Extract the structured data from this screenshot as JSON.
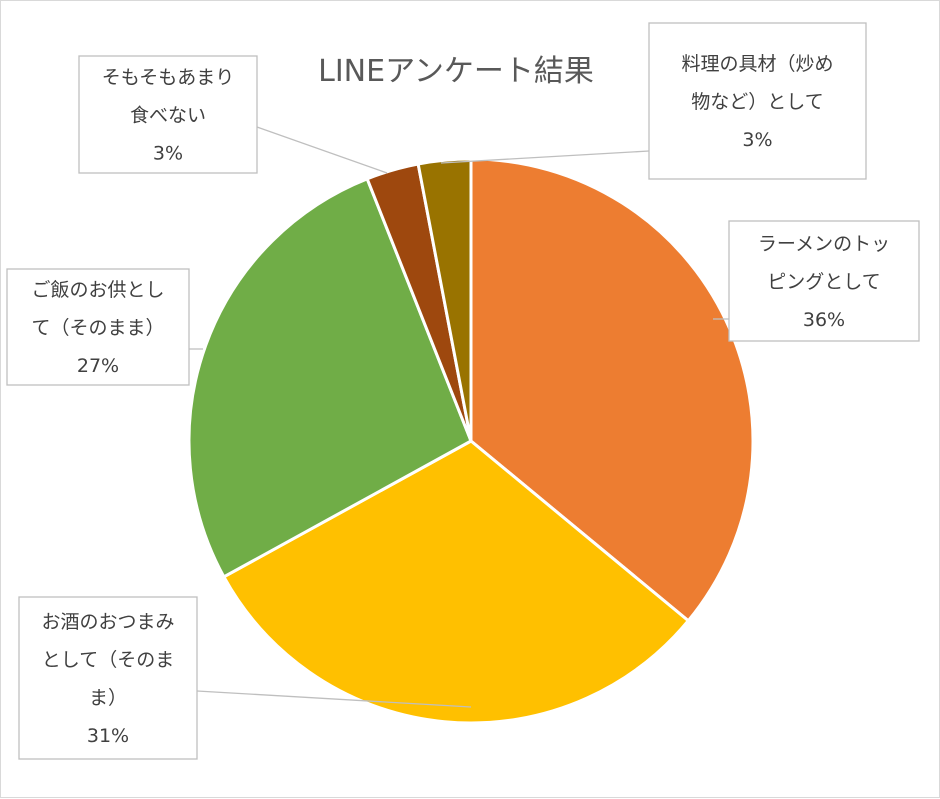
{
  "chart_data": {
    "type": "pie",
    "title": "LINEアンケート結果",
    "start_angle_deg": 0,
    "direction": "clockwise",
    "legend": "none",
    "slices": [
      {
        "label_lines": [
          "ラーメンのトッ",
          "ピングとして"
        ],
        "value": 36,
        "percent_label": "36%",
        "color": "#ED7D31"
      },
      {
        "label_lines": [
          "お酒のおつまみ",
          "として（そのま",
          "ま）"
        ],
        "value": 31,
        "percent_label": "31%",
        "color": "#FFC000"
      },
      {
        "label_lines": [
          "ご飯のお供とし",
          "て（そのまま）"
        ],
        "value": 27,
        "percent_label": "27%",
        "color": "#70AD47"
      },
      {
        "label_lines": [
          "そもそもあまり",
          "食べない"
        ],
        "value": 3,
        "percent_label": "3%",
        "color": "#9E480E"
      },
      {
        "label_lines": [
          "料理の具材（炒め",
          "物など）として"
        ],
        "value": 3,
        "percent_label": "3%",
        "color": "#997300"
      }
    ]
  }
}
